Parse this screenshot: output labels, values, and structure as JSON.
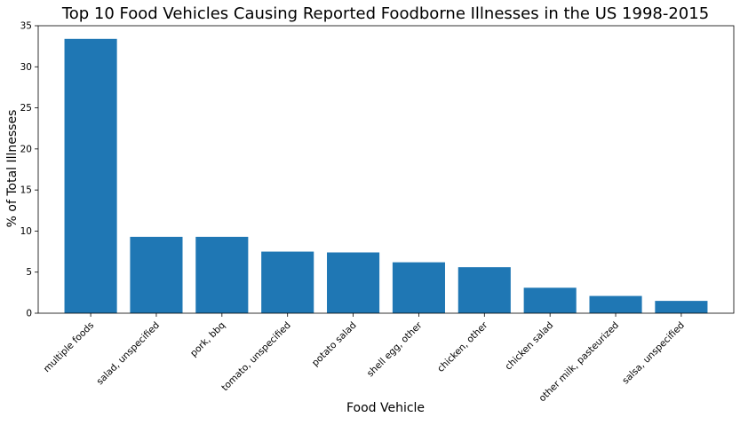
{
  "chart_data": {
    "type": "bar",
    "title": "Top 10 Food Vehicles Causing Reported Foodborne Illnesses in the US 1998-2015",
    "xlabel": "Food Vehicle",
    "ylabel": "% of Total Illnesses",
    "categories": [
      "multiple foods",
      "salad, unspecified",
      "pork, bbq",
      "tomato, unspecified",
      "potato salad",
      "shell egg, other",
      "chicken, other",
      "chicken salad",
      "other milk, pasteurized",
      "salsa, unspecified"
    ],
    "values": [
      33.4,
      9.3,
      9.3,
      7.5,
      7.4,
      6.2,
      5.6,
      3.1,
      2.1,
      1.5
    ],
    "ylim": [
      0,
      35
    ],
    "yticks": [
      0,
      5,
      10,
      15,
      20,
      25,
      30,
      35
    ],
    "bar_color": "#1f77b4",
    "grid": false,
    "legend": "none"
  }
}
